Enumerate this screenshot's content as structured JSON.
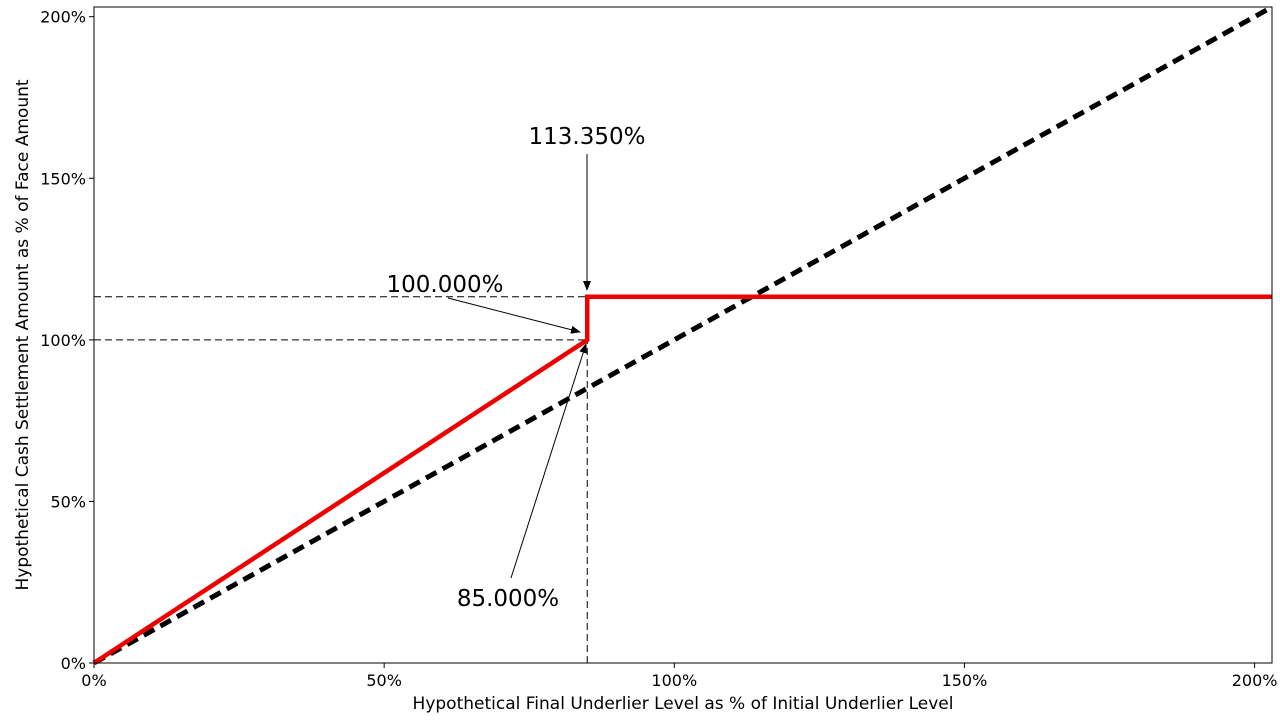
{
  "chart_data": {
    "type": "line",
    "xlabel": "Hypothetical Final Underlier Level as % of Initial Underlier Level",
    "ylabel": "Hypothetical Cash Settlement Amount as % of Face Amount",
    "xlim": [
      0,
      203
    ],
    "ylim": [
      0,
      203
    ],
    "x_ticks": [
      {
        "value": 0,
        "label": "0%"
      },
      {
        "value": 50,
        "label": "50%"
      },
      {
        "value": 100,
        "label": "100%"
      },
      {
        "value": 150,
        "label": "150%"
      },
      {
        "value": 200,
        "label": "200%"
      }
    ],
    "y_ticks": [
      {
        "value": 0,
        "label": "0%"
      },
      {
        "value": 50,
        "label": "50%"
      },
      {
        "value": 100,
        "label": "100%"
      },
      {
        "value": 150,
        "label": "150%"
      },
      {
        "value": 200,
        "label": "200%"
      }
    ],
    "grid": false,
    "series": [
      {
        "style": "solid",
        "color": "#ee0000",
        "points": [
          [
            0,
            0
          ],
          [
            85,
            100
          ],
          [
            85,
            113.35
          ],
          [
            203,
            113.35
          ]
        ]
      },
      {
        "style": "dashed",
        "color": "#000000",
        "points": [
          [
            0,
            0
          ],
          [
            203,
            203
          ]
        ]
      }
    ],
    "reference_lines": [
      {
        "type": "horizontal",
        "y": 113.35,
        "x_from": 0,
        "x_to": 85
      },
      {
        "type": "horizontal",
        "y": 100,
        "x_from": 0,
        "x_to": 85
      },
      {
        "type": "vertical",
        "x": 85,
        "y_from": 0,
        "y_to": 100
      }
    ],
    "annotations": [
      {
        "text": "113.350%",
        "x": 85,
        "y": 113.35
      },
      {
        "text": "100.000%",
        "x": 85,
        "y": 100
      },
      {
        "text": "85.000%",
        "x": 85,
        "y": 100
      }
    ]
  }
}
